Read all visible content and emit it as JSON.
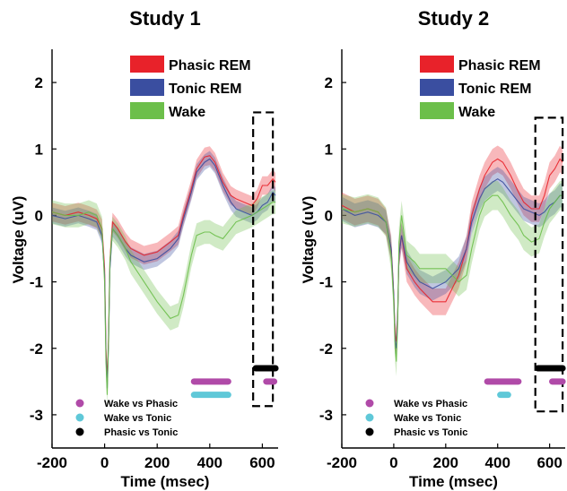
{
  "chart_data": [
    {
      "type": "line",
      "title": "Study 1",
      "xlabel": "Time (msec)",
      "ylabel": "Voltage (uV)",
      "xlim": [
        -200,
        660
      ],
      "ylim": [
        -3.5,
        2.5
      ],
      "x_ticks": [
        -200,
        0,
        200,
        400,
        600
      ],
      "x_tick_labels": [
        "-200",
        "0",
        "200",
        "400",
        "600"
      ],
      "y_ticks": [
        -3,
        -2,
        -1,
        0,
        1,
        2
      ],
      "y_tick_labels": [
        "-3",
        "-2",
        "-1",
        "0",
        "1",
        "2"
      ],
      "legend": [
        {
          "label": "Phasic REM",
          "color": "#e8222a"
        },
        {
          "label": "Tonic REM",
          "color": "#3a4ea0"
        },
        {
          "label": "Wake",
          "color": "#6cbf4a"
        }
      ],
      "series": [
        {
          "name": "Phasic REM",
          "color": "#e8222a",
          "band": 0.14,
          "x": [
            -200,
            -150,
            -100,
            -60,
            -30,
            -10,
            0,
            5,
            10,
            15,
            20,
            30,
            50,
            80,
            100,
            150,
            200,
            250,
            280,
            300,
            330,
            350,
            380,
            400,
            420,
            450,
            480,
            500,
            530,
            560,
            580,
            600,
            620,
            640,
            650
          ],
          "y": [
            0.05,
            0.0,
            0.05,
            0.0,
            -0.05,
            -0.2,
            -0.8,
            -2.0,
            -2.5,
            -1.8,
            -0.7,
            -0.1,
            -0.2,
            -0.4,
            -0.5,
            -0.6,
            -0.55,
            -0.4,
            -0.3,
            0.0,
            0.4,
            0.7,
            0.88,
            0.9,
            0.8,
            0.5,
            0.3,
            0.25,
            0.2,
            0.15,
            0.25,
            0.45,
            0.45,
            0.55,
            0.5
          ]
        },
        {
          "name": "Tonic REM",
          "color": "#3a4ea0",
          "band": 0.12,
          "x": [
            -200,
            -150,
            -100,
            -60,
            -30,
            -10,
            0,
            5,
            10,
            15,
            20,
            30,
            50,
            80,
            100,
            150,
            200,
            250,
            280,
            300,
            330,
            350,
            380,
            400,
            420,
            450,
            480,
            500,
            530,
            560,
            580,
            600,
            620,
            640,
            650
          ],
          "y": [
            0.0,
            -0.05,
            0.0,
            -0.05,
            -0.1,
            -0.3,
            -0.9,
            -2.1,
            -2.6,
            -1.9,
            -0.8,
            -0.2,
            -0.3,
            -0.5,
            -0.6,
            -0.7,
            -0.65,
            -0.5,
            -0.35,
            -0.05,
            0.35,
            0.65,
            0.8,
            0.85,
            0.75,
            0.45,
            0.2,
            0.1,
            0.05,
            0.0,
            0.05,
            0.15,
            0.2,
            0.35,
            0.3
          ]
        },
        {
          "name": "Wake",
          "color": "#6cbf4a",
          "band": 0.18,
          "x": [
            -200,
            -150,
            -100,
            -60,
            -30,
            -10,
            0,
            5,
            10,
            15,
            20,
            30,
            50,
            80,
            100,
            150,
            200,
            250,
            280,
            300,
            330,
            350,
            380,
            400,
            420,
            450,
            480,
            500,
            530,
            560,
            580,
            600,
            620,
            640,
            650
          ],
          "y": [
            0.05,
            0.0,
            0.0,
            0.05,
            0.0,
            -0.2,
            -1.0,
            -2.2,
            -2.7,
            -1.9,
            -0.7,
            -0.2,
            -0.3,
            -0.5,
            -0.7,
            -1.0,
            -1.3,
            -1.55,
            -1.5,
            -1.2,
            -0.6,
            -0.3,
            -0.25,
            -0.25,
            -0.3,
            -0.35,
            -0.2,
            -0.1,
            -0.05,
            0.0,
            0.05,
            0.1,
            0.15,
            0.2,
            0.2
          ]
        }
      ],
      "significance": {
        "legend": [
          {
            "label": "Wake vs Phasic",
            "color": "#b04aa8"
          },
          {
            "label": "Wake vs Tonic",
            "color": "#5fc8d8"
          },
          {
            "label": "Phasic vs Tonic",
            "color": "#000000"
          }
        ],
        "bars": [
          {
            "name": "Wake vs Phasic",
            "color": "#b04aa8",
            "y": -2.5,
            "ranges": [
              [
                340,
                470
              ],
              [
                615,
                645
              ]
            ]
          },
          {
            "name": "Wake vs Tonic",
            "color": "#5fc8d8",
            "y": -2.7,
            "ranges": [
              [
                340,
                470
              ]
            ]
          },
          {
            "name": "Phasic vs Tonic",
            "color": "#000000",
            "y": -2.3,
            "ranges": [
              [
                575,
                650
              ]
            ]
          }
        ]
      },
      "highlight_window": {
        "x": [
          565,
          640
        ],
        "y": [
          -2.87,
          1.55
        ]
      }
    },
    {
      "type": "line",
      "title": "Study 2",
      "xlabel": "Time (msec)",
      "ylabel": "Voltage (uV)",
      "xlim": [
        -200,
        660
      ],
      "ylim": [
        -3.5,
        2.5
      ],
      "x_ticks": [
        -200,
        0,
        200,
        400,
        600
      ],
      "x_tick_labels": [
        "-200",
        "0",
        "200",
        "400",
        "600"
      ],
      "y_ticks": [
        -3,
        -2,
        -1,
        0,
        1,
        2
      ],
      "y_tick_labels": [
        "-3",
        "-2",
        "-1",
        "0",
        "1",
        "2"
      ],
      "legend": [
        {
          "label": "Phasic REM",
          "color": "#e8222a"
        },
        {
          "label": "Tonic REM",
          "color": "#3a4ea0"
        },
        {
          "label": "Wake",
          "color": "#6cbf4a"
        }
      ],
      "series": [
        {
          "name": "Phasic REM",
          "color": "#e8222a",
          "band": 0.2,
          "x": [
            -200,
            -150,
            -100,
            -60,
            -30,
            -10,
            0,
            5,
            10,
            15,
            20,
            30,
            50,
            80,
            100,
            150,
            200,
            250,
            280,
            300,
            330,
            350,
            380,
            400,
            420,
            450,
            480,
            500,
            530,
            560,
            580,
            600,
            620,
            640,
            650
          ],
          "y": [
            0.15,
            0.05,
            0.1,
            0.05,
            -0.1,
            -0.5,
            -1.2,
            -1.8,
            -1.9,
            -1.5,
            -0.6,
            -0.3,
            -0.8,
            -1.0,
            -1.1,
            -1.3,
            -1.3,
            -0.9,
            -0.5,
            0.0,
            0.4,
            0.6,
            0.8,
            0.85,
            0.8,
            0.6,
            0.35,
            0.2,
            0.1,
            0.1,
            0.3,
            0.6,
            0.7,
            0.85,
            0.8
          ]
        },
        {
          "name": "Tonic REM",
          "color": "#3a4ea0",
          "band": 0.18,
          "x": [
            -200,
            -150,
            -100,
            -60,
            -30,
            -10,
            0,
            5,
            10,
            15,
            20,
            30,
            50,
            80,
            100,
            150,
            200,
            250,
            280,
            300,
            330,
            350,
            380,
            400,
            420,
            450,
            480,
            500,
            530,
            560,
            580,
            600,
            620,
            640,
            650
          ],
          "y": [
            0.1,
            0.0,
            0.05,
            0.0,
            -0.1,
            -0.5,
            -1.2,
            -1.9,
            -2.0,
            -1.5,
            -0.6,
            -0.3,
            -0.7,
            -0.9,
            -1.0,
            -1.1,
            -1.0,
            -0.8,
            -0.5,
            -0.1,
            0.25,
            0.4,
            0.5,
            0.55,
            0.5,
            0.35,
            0.2,
            0.1,
            0.05,
            0.0,
            0.05,
            0.15,
            0.2,
            0.3,
            0.3
          ]
        },
        {
          "name": "Wake",
          "color": "#6cbf4a",
          "band": 0.22,
          "x": [
            -200,
            -150,
            -100,
            -60,
            -30,
            -10,
            0,
            5,
            10,
            15,
            20,
            30,
            50,
            80,
            100,
            150,
            200,
            250,
            280,
            300,
            330,
            350,
            380,
            400,
            420,
            450,
            480,
            500,
            530,
            560,
            580,
            600,
            620,
            640,
            650
          ],
          "y": [
            0.1,
            0.05,
            0.1,
            0.05,
            -0.1,
            -0.6,
            -1.3,
            -2.0,
            -2.2,
            -1.6,
            -0.4,
            0.0,
            -0.6,
            -0.7,
            -0.8,
            -0.8,
            -0.8,
            -1.0,
            -0.9,
            -0.5,
            0.0,
            0.2,
            0.3,
            0.3,
            0.2,
            0.0,
            -0.15,
            -0.3,
            -0.4,
            -0.35,
            -0.1,
            0.1,
            0.2,
            0.3,
            0.3
          ]
        }
      ],
      "significance": {
        "legend": [
          {
            "label": "Wake vs Phasic",
            "color": "#b04aa8"
          },
          {
            "label": "Wake vs Tonic",
            "color": "#5fc8d8"
          },
          {
            "label": "Phasic vs Tonic",
            "color": "#000000"
          }
        ],
        "bars": [
          {
            "name": "Wake vs Phasic",
            "color": "#b04aa8",
            "y": -2.5,
            "ranges": [
              [
                360,
                480
              ],
              [
                610,
                650
              ]
            ]
          },
          {
            "name": "Wake vs Tonic",
            "color": "#5fc8d8",
            "y": -2.7,
            "ranges": [
              [
                410,
                440
              ]
            ]
          },
          {
            "name": "Phasic vs Tonic",
            "color": "#000000",
            "y": -2.3,
            "ranges": [
              [
                555,
                650
              ]
            ]
          }
        ]
      },
      "highlight_window": {
        "x": [
          545,
          650
        ],
        "y": [
          -2.95,
          1.47
        ]
      }
    }
  ]
}
